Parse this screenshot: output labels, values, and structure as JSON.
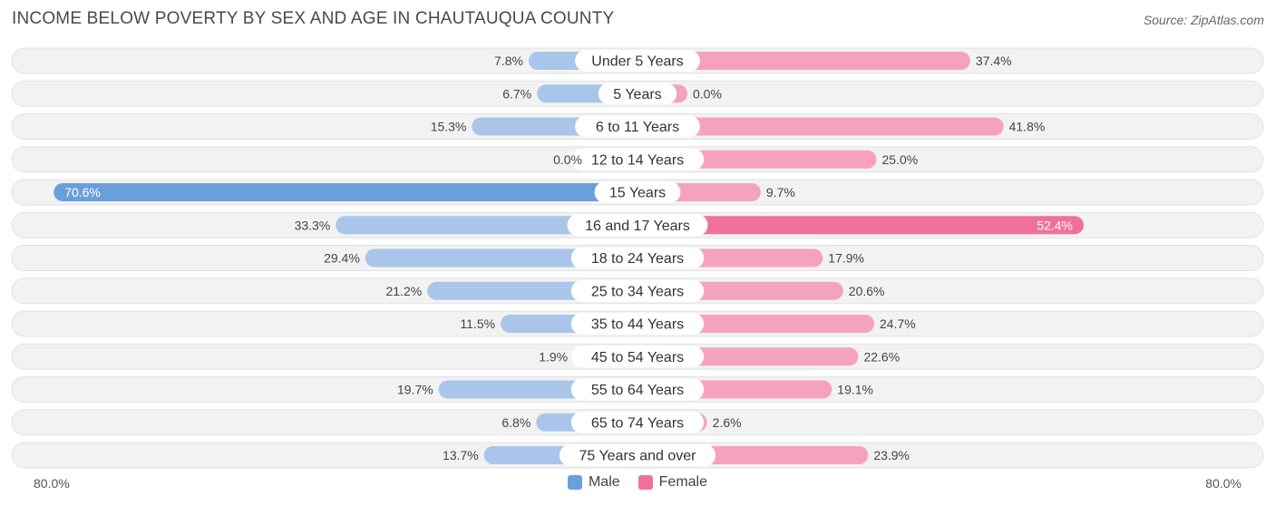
{
  "title": "INCOME BELOW POVERTY BY SEX AND AGE IN CHAUTAUQUA COUNTY",
  "source": "Source: ZipAtlas.com",
  "axis": {
    "left_label": "80.0%",
    "right_label": "80.0%"
  },
  "legend": [
    {
      "label": "Male",
      "color": "#6a9fdc"
    },
    {
      "label": "Female",
      "color": "#f07198"
    }
  ],
  "chart_data": {
    "type": "bar",
    "orientation": "horizontal-diverging",
    "title": "INCOME BELOW POVERTY BY SEX AND AGE IN CHAUTAUQUA COUNTY",
    "xlim": [
      -80,
      80
    ],
    "categories": [
      "Under 5 Years",
      "5 Years",
      "6 to 11 Years",
      "12 to 14 Years",
      "15 Years",
      "16 and 17 Years",
      "18 to 24 Years",
      "25 to 34 Years",
      "35 to 44 Years",
      "45 to 54 Years",
      "55 to 64 Years",
      "65 to 74 Years",
      "75 Years and over"
    ],
    "series": [
      {
        "name": "Male",
        "values": [
          7.8,
          6.7,
          15.3,
          0.0,
          70.6,
          33.3,
          29.4,
          21.2,
          11.5,
          1.9,
          19.7,
          6.8,
          13.7
        ],
        "labels": [
          "7.8%",
          "6.7%",
          "15.3%",
          "0.0%",
          "70.6%",
          "33.3%",
          "29.4%",
          "21.2%",
          "11.5%",
          "1.9%",
          "19.7%",
          "6.8%",
          "13.7%"
        ]
      },
      {
        "name": "Female",
        "values": [
          37.4,
          0.0,
          41.8,
          25.0,
          9.7,
          52.4,
          17.9,
          20.6,
          24.7,
          22.6,
          19.1,
          2.6,
          23.9
        ],
        "labels": [
          "37.4%",
          "0.0%",
          "41.8%",
          "25.0%",
          "9.7%",
          "52.4%",
          "17.9%",
          "20.6%",
          "24.7%",
          "22.6%",
          "19.1%",
          "2.6%",
          "23.9%"
        ]
      }
    ],
    "colors": {
      "male_light": "#a9c6ea",
      "male_strong": "#6a9fdc",
      "female_light": "#f5a3bd",
      "female_strong": "#f07198"
    },
    "grid": false,
    "legend_position": "bottom-center"
  }
}
